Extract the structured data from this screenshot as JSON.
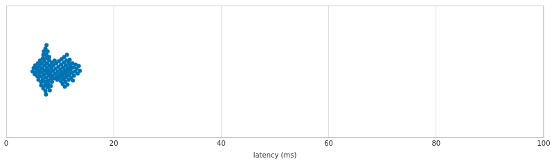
{
  "chart_data": {
    "type": "strip",
    "xlabel": "latency (ms)",
    "x": [
      4.9,
      5.1,
      5.3,
      5.4,
      5.6,
      5.7,
      5.8,
      5.9,
      6.0,
      6.1,
      6.2,
      6.2,
      6.3,
      6.4,
      6.5,
      6.5,
      6.6,
      6.7,
      6.7,
      6.8,
      6.8,
      6.9,
      6.9,
      7.0,
      7.0,
      7.1,
      7.1,
      7.2,
      7.2,
      7.2,
      7.3,
      7.3,
      7.4,
      7.4,
      7.4,
      7.5,
      7.5,
      7.5,
      7.6,
      7.6,
      7.7,
      7.7,
      7.8,
      7.8,
      7.9,
      7.9,
      8.0,
      8.0,
      8.1,
      8.1,
      8.2,
      8.3,
      8.3,
      8.4,
      8.5,
      8.5,
      8.6,
      8.7,
      8.8,
      8.9,
      9.0,
      9.1,
      9.2,
      9.3,
      9.4,
      9.5,
      9.6,
      9.7,
      9.8,
      9.9,
      10.0,
      10.1,
      10.2,
      10.2,
      10.3,
      10.4,
      10.5,
      10.5,
      10.6,
      10.7,
      10.7,
      10.8,
      10.9,
      10.9,
      11.0,
      11.0,
      11.1,
      11.2,
      11.2,
      11.3,
      11.4,
      11.4,
      11.5,
      11.6,
      11.6,
      11.7,
      11.8,
      11.9,
      12.0,
      12.1,
      12.2,
      12.3,
      12.4,
      12.5,
      12.6,
      12.8,
      12.9,
      13.1,
      13.3,
      13.5,
      13.7
    ],
    "color": "#0173b2",
    "marker": "circle",
    "xlim": [
      0,
      100
    ],
    "xticks": [
      0,
      20,
      40,
      60,
      80,
      100
    ],
    "grid": true,
    "tick_labels": "x"
  }
}
